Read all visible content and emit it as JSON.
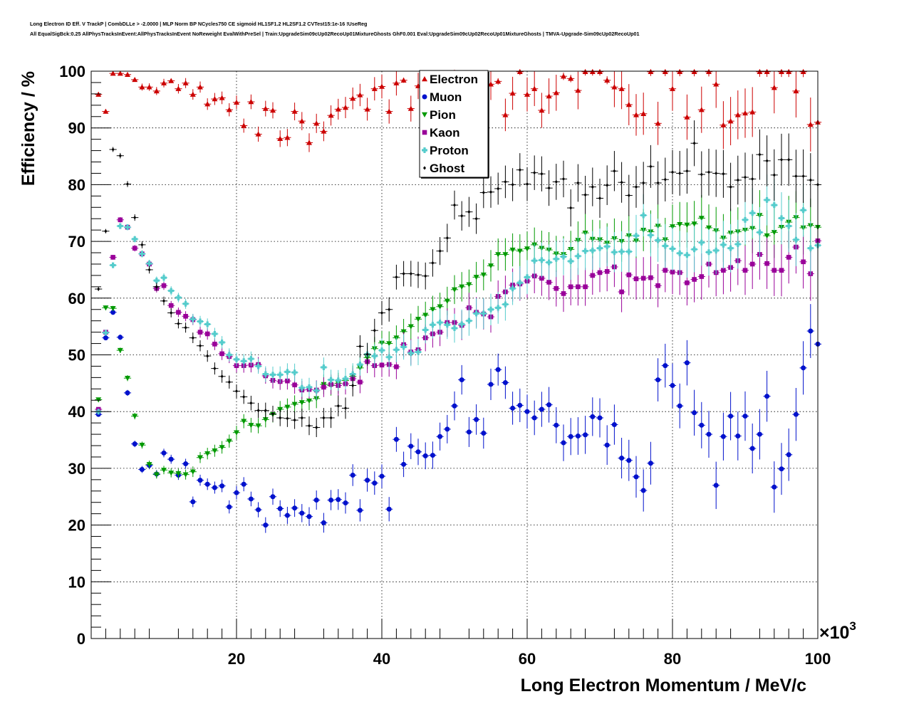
{
  "title_lines": [
    "Long Electron ID Eff. V TrackP | CombDLLe > -2.0000 | MLP Norm BP NCycles750 CE sigmoid HL1SF1.2 HL2SF1.2 CVTest15:1e-16 !UseReg",
    "All EqualSigBck:0.25 AllPhysTracksInEvent:AllPhysTracksInEvent NoReweight EvalWithPreSel | Train:UpgradeSim09cUp02RecoUp01MixtureGhosts GhF0.001 Eval:UpgradeSim09cUp02RecoUp01MixtureGhosts | TMVA-Upgrade-Sim09cUp02RecoUp01"
  ],
  "chart_data": {
    "type": "scatter",
    "title": "",
    "xlabel": "Long Electron Momentum / MeV/c",
    "ylabel": "Efficiency / %",
    "x_multiplier_label": "×10",
    "x_multiplier_exp": "3",
    "xlim": [
      0,
      100
    ],
    "ylim": [
      0,
      100
    ],
    "x_ticks": [
      20,
      40,
      60,
      80,
      100
    ],
    "y_ticks": [
      0,
      10,
      20,
      30,
      40,
      50,
      60,
      70,
      80,
      90,
      100
    ],
    "grid": true,
    "legend_position": "top-center",
    "x": [
      1.0,
      2.0,
      3.0,
      4.0,
      5.0,
      6.0,
      7.0,
      8.0,
      9.0,
      10.0,
      11.0,
      12.0,
      13.0,
      14.0,
      15.0,
      16.0,
      17.0,
      18.0,
      19.0,
      20.0,
      21.0,
      22.0,
      23.0,
      24.0,
      25.0,
      26.0,
      27.0,
      28.0,
      29.0,
      30.0,
      31.0,
      32.0,
      33.0,
      34.0,
      35.0,
      36.0,
      37.0,
      38.0,
      39.0,
      40.0,
      41.0,
      42.0,
      43.0,
      44.0,
      45.0,
      46.0,
      47.0,
      48.0,
      49.0,
      50.0,
      51.0,
      52.0,
      53.0,
      54.0,
      55.0,
      56.0,
      57.0,
      58.0,
      59.0,
      60.0,
      61.0,
      62.0,
      63.0,
      64.0,
      65.0,
      66.0,
      67.0,
      68.0,
      69.0,
      70.0,
      71.0,
      72.0,
      73.0,
      74.0,
      75.0,
      76.0,
      77.0,
      78.0,
      79.0,
      80.0,
      81.0,
      82.0,
      83.0,
      84.0,
      85.0,
      86.0,
      87.0,
      88.0,
      89.0,
      90.0,
      91.0,
      92.0,
      93.0,
      94.0,
      95.0,
      96.0,
      97.0,
      98.0,
      99.0,
      100.0
    ],
    "series": [
      {
        "name": "Electron",
        "color": "#cc0000",
        "marker": "triangle-up",
        "y": [
          95.9,
          92.9,
          99.6,
          99.6,
          99.4,
          98.5,
          97.2,
          97.2,
          96.5,
          97.9,
          98.3,
          96.9,
          97.9,
          95.9,
          97.2,
          94.2,
          95.1,
          95.3,
          93.2,
          94.5,
          90.4,
          94.6,
          88.9,
          93.4,
          93.1,
          88.1,
          88.3,
          92.9,
          91.2,
          87.4,
          90.8,
          89.4,
          92.2,
          93.3,
          93.6,
          95.2,
          95.8,
          93.3,
          96.9,
          97.3,
          92.9,
          97.9,
          98.4,
          93.4,
          97.4,
          94.2,
          98.2,
          98.2,
          98.5,
          99.8,
          94.7,
          98.6,
          93.4,
          95.4,
          97.7,
          98.2,
          92.3,
          96.1,
          99.9,
          95.9,
          96.9,
          93.1,
          95.6,
          96.2,
          99.1,
          98.7,
          96.6,
          99.9,
          99.9,
          99.9,
          98.4,
          97.2,
          96.9,
          94.1,
          92.3,
          92.5,
          99.9,
          90.8,
          99.9,
          96.9,
          99.9,
          91.9,
          99.9,
          93.2,
          99.9,
          97.7,
          90.5,
          91.2,
          92.3,
          92.6,
          92.8,
          99.9,
          99.9,
          97.1,
          99.9,
          99.9,
          96.5,
          99.9,
          90.6,
          91.0
        ]
      },
      {
        "name": "Muon",
        "color": "#0011cc",
        "marker": "circle",
        "y": [
          39.5,
          53.0,
          57.5,
          53.1,
          43.3,
          34.3,
          29.8,
          30.5,
          29.0,
          32.7,
          31.6,
          28.8,
          30.8,
          24.1,
          27.9,
          27.2,
          26.6,
          26.9,
          23.2,
          25.7,
          27.2,
          24.6,
          22.7,
          20.0,
          25.0,
          22.9,
          21.7,
          23.0,
          22.1,
          21.5,
          24.4,
          20.4,
          24.4,
          24.5,
          23.9,
          28.8,
          22.6,
          27.9,
          27.4,
          28.6,
          22.8,
          35.1,
          30.7,
          33.9,
          32.9,
          32.2,
          32.3,
          35.6,
          36.9,
          41.0,
          45.6,
          36.4,
          38.6,
          36.2,
          44.8,
          47.4,
          45.1,
          40.6,
          41.1,
          40.0,
          38.9,
          40.4,
          41.2,
          37.6,
          34.5,
          35.6,
          35.7,
          35.9,
          39.1,
          38.9,
          34.1,
          37.7,
          31.8,
          31.4,
          28.5,
          26.1,
          30.9,
          45.6,
          48.1,
          44.6,
          41.0,
          48.6,
          39.8,
          37.6,
          36.0,
          27.0,
          35.6,
          39.2,
          35.7,
          39.2,
          33.5,
          36.0,
          42.7,
          26.7,
          29.9,
          32.4,
          39.5,
          47.7,
          54.2,
          51.9
        ]
      },
      {
        "name": "Pion",
        "color": "#009900",
        "marker": "triangle-down",
        "y": [
          42.1,
          58.3,
          58.2,
          50.8,
          45.9,
          39.2,
          34.1,
          30.7,
          28.9,
          29.7,
          29.2,
          29.1,
          28.9,
          29.4,
          31.9,
          32.6,
          33.1,
          33.7,
          34.8,
          36.3,
          38.3,
          37.6,
          37.5,
          38.6,
          39.5,
          40.4,
          40.8,
          41.3,
          41.6,
          41.9,
          42.3,
          44.8,
          44.6,
          45.0,
          45.5,
          46.2,
          47.7,
          49.5,
          51.1,
          52.1,
          52.0,
          53.0,
          54.1,
          55.0,
          56.3,
          57.0,
          58.0,
          58.5,
          59.5,
          61.5,
          62.0,
          62.4,
          63.7,
          64.1,
          65.7,
          67.7,
          67.7,
          68.5,
          68.3,
          68.7,
          69.4,
          68.8,
          68.5,
          67.8,
          67.7,
          68.6,
          70.2,
          71.5,
          70.4,
          70.3,
          69.7,
          70.5,
          70.0,
          71.0,
          70.1,
          72.0,
          71.7,
          72.7,
          70.3,
          72.6,
          73.0,
          72.9,
          73.1,
          74.1,
          72.4,
          71.9,
          70.6,
          71.5,
          71.7,
          72.0,
          72.3,
          74.6,
          71.0,
          71.6,
          72.5,
          73.4,
          74.2,
          72.4,
          72.8,
          72.5
        ]
      },
      {
        "name": "Kaon",
        "color": "#990099",
        "marker": "square",
        "y": [
          40.4,
          54.0,
          67.2,
          73.8,
          72.5,
          68.8,
          67.8,
          66.0,
          61.7,
          62.2,
          58.7,
          57.5,
          56.8,
          56.2,
          54.0,
          53.7,
          51.9,
          50.2,
          49.7,
          48.1,
          48.1,
          48.2,
          48.3,
          46.3,
          45.5,
          45.3,
          45.4,
          44.7,
          43.8,
          43.9,
          43.8,
          44.3,
          44.8,
          44.6,
          44.9,
          45.8,
          45.2,
          48.8,
          48.1,
          48.2,
          48.3,
          47.9,
          51.8,
          50.5,
          50.9,
          53.0,
          53.7,
          54.0,
          55.7,
          55.7,
          55.2,
          58.3,
          57.5,
          57.2,
          56.7,
          60.3,
          61.1,
          62.3,
          62.5,
          63.0,
          63.9,
          63.5,
          62.8,
          61.7,
          60.8,
          62.0,
          62.0,
          62.0,
          64.0,
          64.5,
          64.7,
          65.5,
          61.1,
          64.1,
          63.4,
          63.5,
          63.6,
          62.2,
          64.9,
          64.6,
          64.5,
          62.7,
          63.3,
          63.8,
          66.0,
          64.5,
          64.9,
          65.4,
          66.6,
          64.9,
          66.0,
          67.7,
          66.1,
          64.9,
          64.9,
          67.2,
          69.0,
          66.4,
          64.3,
          70.1
        ]
      },
      {
        "name": "Proton",
        "color": "#55cccc",
        "marker": "cross",
        "y": [
          40.0,
          53.9,
          65.8,
          72.7,
          72.5,
          70.4,
          67.8,
          66.1,
          63.1,
          63.6,
          61.3,
          60.1,
          59.0,
          56.3,
          55.9,
          55.4,
          53.7,
          52.2,
          50.0,
          49.2,
          48.9,
          49.3,
          48.0,
          46.6,
          46.5,
          46.5,
          47.0,
          46.9,
          44.2,
          44.3,
          43.7,
          47.8,
          45.6,
          45.5,
          45.8,
          46.6,
          48.3,
          50.1,
          49.8,
          50.8,
          49.6,
          50.9,
          51.4,
          50.3,
          50.5,
          54.4,
          55.3,
          55.7,
          55.3,
          54.7,
          55.4,
          56.0,
          57.3,
          57.3,
          58.0,
          58.3,
          58.9,
          61.7,
          62.7,
          63.7,
          66.6,
          66.7,
          66.3,
          66.9,
          67.3,
          66.5,
          67.4,
          68.3,
          68.4,
          68.8,
          69.1,
          68.1,
          68.2,
          68.2,
          71.0,
          74.6,
          71.1,
          70.2,
          69.2,
          68.7,
          67.9,
          67.6,
          68.6,
          69.8,
          68.1,
          68.4,
          69.4,
          68.8,
          69.5,
          73.8,
          75.0,
          71.6,
          77.3,
          76.4,
          74.1,
          72.7,
          70.3,
          75.5,
          68.8,
          69.3
        ]
      },
      {
        "name": "Ghost",
        "color": "#000000",
        "marker": "diamond",
        "y": [
          61.6,
          71.8,
          86.2,
          85.1,
          80.1,
          74.2,
          69.4,
          65.0,
          62.0,
          59.5,
          57.4,
          55.5,
          54.8,
          53.0,
          51.6,
          49.8,
          47.6,
          46.2,
          45.2,
          43.6,
          42.6,
          41.5,
          40.2,
          40.2,
          39.6,
          38.9,
          38.8,
          38.5,
          38.9,
          37.5,
          37.2,
          38.9,
          38.9,
          41.0,
          40.6,
          44.6,
          51.5,
          50.1,
          54.3,
          57.4,
          58.0,
          63.7,
          64.3,
          64.3,
          64.1,
          63.9,
          66.2,
          68.3,
          70.6,
          76.4,
          74.5,
          75.2,
          74.0,
          78.6,
          78.7,
          79.3,
          80.5,
          80.0,
          82.6,
          80.1,
          82.1,
          81.9,
          79.4,
          80.5,
          81.0,
          75.9,
          80.3,
          78.2,
          79.6,
          77.6,
          79.9,
          82.4,
          80.4,
          78.1,
          79.6,
          80.3,
          83.2,
          80.3,
          80.9,
          82.2,
          82.0,
          82.4,
          87.3,
          81.8,
          82.2,
          82.0,
          81.9,
          79.6,
          80.8,
          81.3,
          81.0,
          85.3,
          84.2,
          81.7,
          84.4,
          84.4,
          81.5,
          81.5,
          80.8,
          80.0
        ]
      }
    ]
  }
}
